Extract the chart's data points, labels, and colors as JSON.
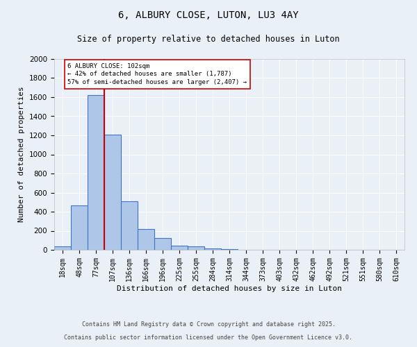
{
  "title1": "6, ALBURY CLOSE, LUTON, LU3 4AY",
  "title2": "Size of property relative to detached houses in Luton",
  "xlabel": "Distribution of detached houses by size in Luton",
  "ylabel": "Number of detached properties",
  "bar_labels": [
    "18sqm",
    "48sqm",
    "77sqm",
    "107sqm",
    "136sqm",
    "166sqm",
    "196sqm",
    "225sqm",
    "255sqm",
    "284sqm",
    "314sqm",
    "344sqm",
    "373sqm",
    "403sqm",
    "432sqm",
    "462sqm",
    "492sqm",
    "521sqm",
    "551sqm",
    "580sqm",
    "610sqm"
  ],
  "bar_values": [
    35,
    465,
    1620,
    1210,
    510,
    220,
    125,
    47,
    35,
    15,
    8,
    0,
    0,
    0,
    0,
    0,
    0,
    0,
    0,
    0,
    0
  ],
  "bar_color": "#aec6e8",
  "bar_edge_color": "#4472c4",
  "bg_color": "#eaf0f8",
  "grid_color": "#ffffff",
  "vline_color": "#cc0000",
  "annotation_text": "6 ALBURY CLOSE: 102sqm\n← 42% of detached houses are smaller (1,787)\n57% of semi-detached houses are larger (2,407) →",
  "annotation_box_color": "#ffffff",
  "annotation_box_edge": "#cc0000",
  "ylim": [
    0,
    2000
  ],
  "yticks": [
    0,
    200,
    400,
    600,
    800,
    1000,
    1200,
    1400,
    1600,
    1800,
    2000
  ],
  "footnote1": "Contains HM Land Registry data © Crown copyright and database right 2025.",
  "footnote2": "Contains public sector information licensed under the Open Government Licence v3.0."
}
